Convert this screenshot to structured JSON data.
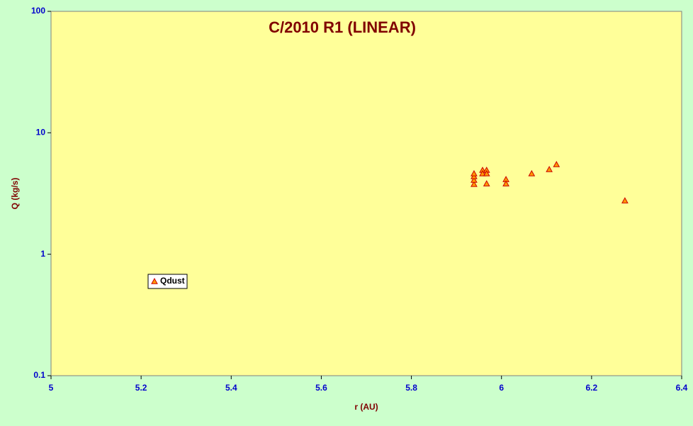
{
  "chart_data": {
    "type": "scatter",
    "title": "C/2010 R1 (LINEAR)",
    "x_label": "r (AU)",
    "y_label": "Q (kg/s)",
    "series": [
      {
        "name": "Qdust",
        "color": "#ff9900",
        "marker": "triangle",
        "x": [
          5.939,
          5.939,
          5.939,
          5.939,
          5.958,
          5.958,
          5.967,
          5.967,
          5.967,
          6.01,
          6.01,
          6.067,
          6.106,
          6.122,
          6.274
        ],
        "values": [
          3.77,
          4.08,
          4.37,
          4.61,
          4.92,
          4.61,
          4.92,
          4.61,
          3.81,
          4.13,
          3.81,
          4.61,
          4.99,
          5.48,
          2.76
        ]
      }
    ],
    "xlim": [
      5,
      6.4
    ],
    "xticks": [
      5,
      5.2,
      5.4,
      5.6,
      5.8,
      6,
      6.2,
      6.4
    ],
    "ylim": [
      0.1,
      100
    ],
    "yticks": [
      0.1,
      1,
      10,
      100
    ],
    "log_y": true,
    "grid": false
  }
}
